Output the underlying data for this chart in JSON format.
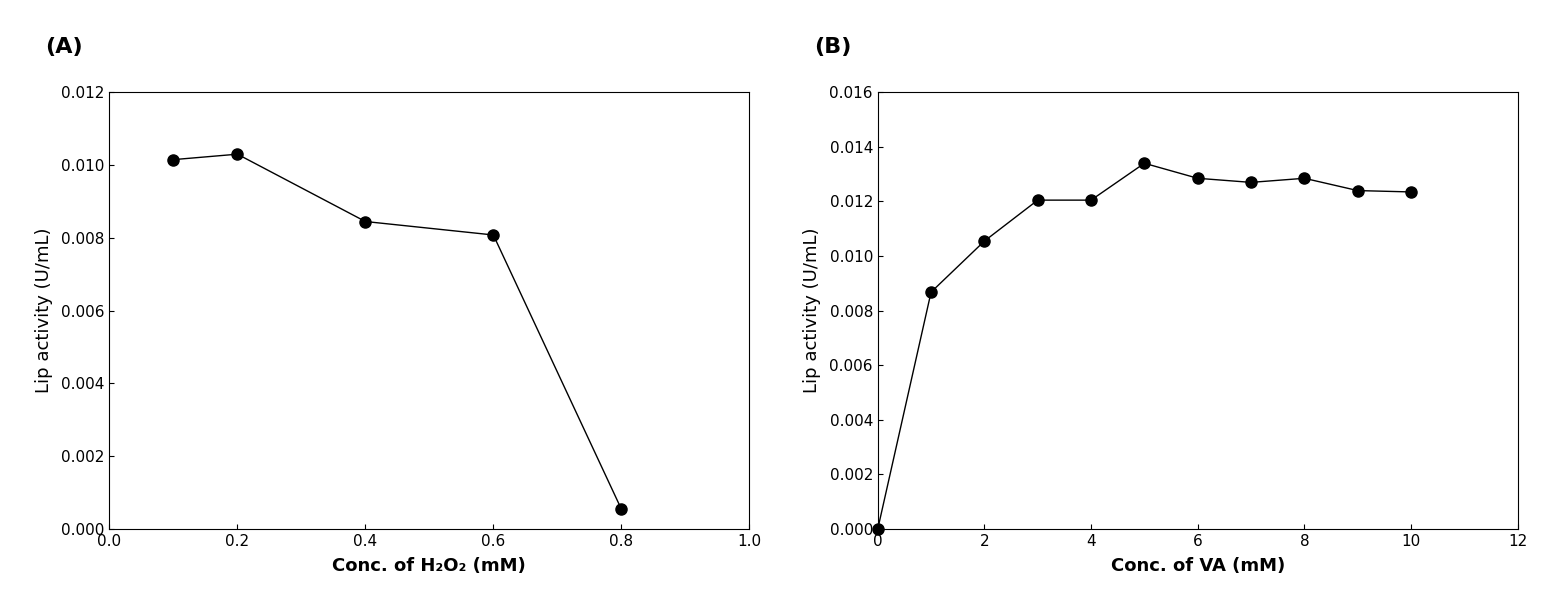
{
  "A": {
    "label": "(A)",
    "x": [
      0.1,
      0.2,
      0.4,
      0.6,
      0.8
    ],
    "y": [
      0.01015,
      0.0103,
      0.00845,
      0.00808,
      0.00055
    ],
    "xlim": [
      0.0,
      1.0
    ],
    "xticks": [
      0.0,
      0.2,
      0.4,
      0.6,
      0.8,
      1.0
    ],
    "ylim": [
      0.0,
      0.012
    ],
    "yticks": [
      0.0,
      0.002,
      0.004,
      0.006,
      0.008,
      0.01,
      0.012
    ],
    "xlabel": "Conc. of H₂O₂ (mM)",
    "ylabel": "Lip activity (U/mL)"
  },
  "B": {
    "label": "(B)",
    "x": [
      0,
      1,
      2,
      3,
      4,
      5,
      6,
      7,
      8,
      9,
      10
    ],
    "y": [
      0.0,
      0.00868,
      0.01055,
      0.01205,
      0.01205,
      0.0134,
      0.01285,
      0.0127,
      0.01285,
      0.0124,
      0.01235
    ],
    "xlim": [
      0,
      12
    ],
    "xticks": [
      0,
      2,
      4,
      6,
      8,
      10,
      12
    ],
    "ylim": [
      0.0,
      0.016
    ],
    "yticks": [
      0.0,
      0.002,
      0.004,
      0.006,
      0.008,
      0.01,
      0.012,
      0.014,
      0.016
    ],
    "xlabel": "Conc. of VA (mM)",
    "ylabel": "Lip activity (U/mL)"
  },
  "marker_color": "#000000",
  "marker_size": 8,
  "line_color": "#000000",
  "line_width": 1.0,
  "background_color": "#ffffff",
  "label_fontsize": 16,
  "axis_label_fontsize": 13,
  "tick_fontsize": 11
}
